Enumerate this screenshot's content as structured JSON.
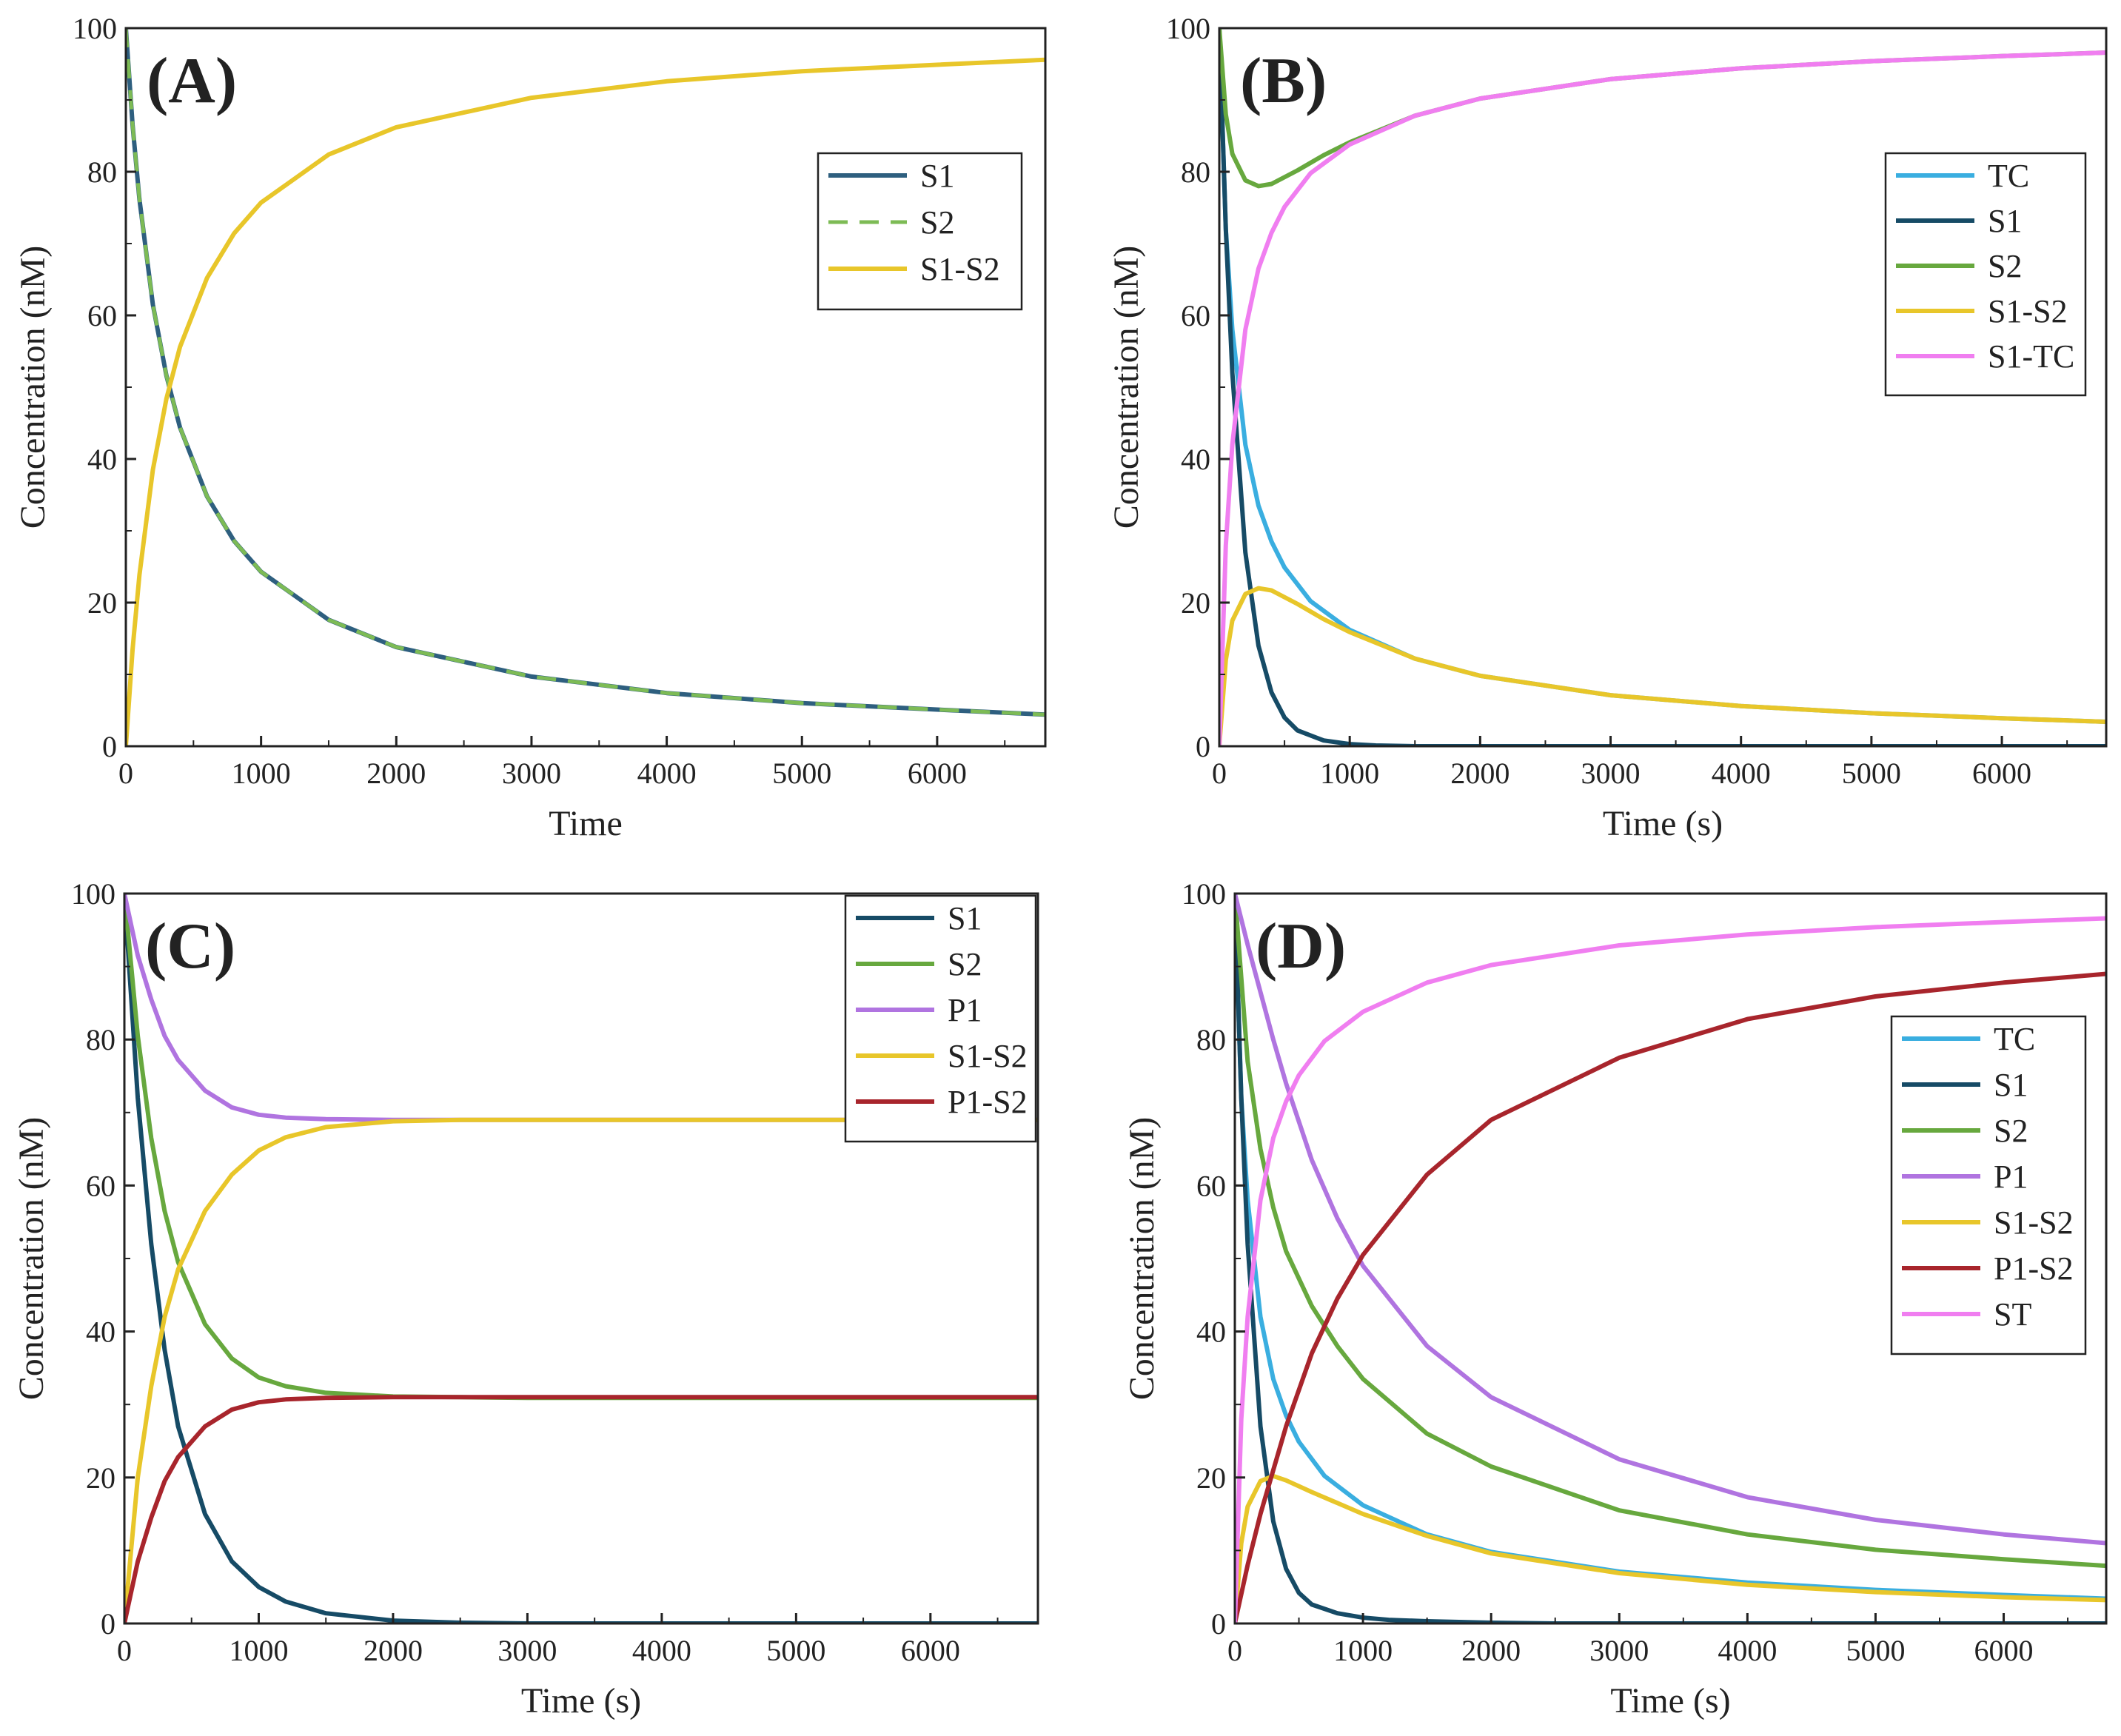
{
  "chart_data": [
    {
      "panel": "(A)",
      "type": "line",
      "xlabel": "Time",
      "ylabel": "Concentration (nM)",
      "xlim": [
        0,
        6800
      ],
      "ylim": [
        0,
        100
      ],
      "xticks": [
        0,
        1000,
        2000,
        3000,
        4000,
        5000,
        6000
      ],
      "yticks": [
        0,
        20,
        40,
        60,
        80,
        100
      ],
      "legend": "top-right",
      "series": [
        {
          "name": "S1",
          "color": "#2e5f7f",
          "dashed": false,
          "x": [
            0,
            50,
            100,
            200,
            300,
            400,
            600,
            800,
            1000,
            1500,
            2000,
            3000,
            4000,
            5000,
            6000,
            6800
          ],
          "y": [
            100,
            86.5,
            76.2,
            61.5,
            51.6,
            44.4,
            34.8,
            28.6,
            24.3,
            17.6,
            13.8,
            9.7,
            7.4,
            6.0,
            5.1,
            4.4
          ]
        },
        {
          "name": "S2",
          "color": "#7dbb55",
          "dashed": true,
          "x": [
            0,
            50,
            100,
            200,
            300,
            400,
            600,
            800,
            1000,
            1500,
            2000,
            3000,
            4000,
            5000,
            6000,
            6800
          ],
          "y": [
            100,
            86.5,
            76.2,
            61.5,
            51.6,
            44.4,
            34.8,
            28.6,
            24.3,
            17.6,
            13.8,
            9.7,
            7.4,
            6.0,
            5.1,
            4.4
          ]
        },
        {
          "name": "S1-S2",
          "color": "#e8c62a",
          "dashed": false,
          "x": [
            0,
            50,
            100,
            200,
            300,
            400,
            600,
            800,
            1000,
            1500,
            2000,
            3000,
            4000,
            5000,
            6000,
            6800
          ],
          "y": [
            0,
            13.5,
            23.8,
            38.5,
            48.4,
            55.6,
            65.2,
            71.4,
            75.7,
            82.4,
            86.2,
            90.3,
            92.6,
            94.0,
            94.9,
            95.6
          ]
        }
      ]
    },
    {
      "panel": "(B)",
      "type": "line",
      "xlabel": "Time (s)",
      "ylabel": "Concentration (nM)",
      "xlim": [
        0,
        6800
      ],
      "ylim": [
        0,
        100
      ],
      "xticks": [
        0,
        1000,
        2000,
        3000,
        4000,
        5000,
        6000
      ],
      "yticks": [
        0,
        20,
        40,
        60,
        80,
        100
      ],
      "legend": "top-right",
      "series": [
        {
          "name": "TC",
          "color": "#3aaee0",
          "dashed": false,
          "x": [
            0,
            50,
            100,
            200,
            300,
            400,
            500,
            700,
            1000,
            1500,
            2000,
            3000,
            4000,
            5000,
            6000,
            6800
          ],
          "y": [
            100,
            72,
            58,
            42,
            33.5,
            28.5,
            24.9,
            20.2,
            16.2,
            12.2,
            9.8,
            7.1,
            5.6,
            4.6,
            3.9,
            3.4
          ]
        },
        {
          "name": "S1",
          "color": "#164b66",
          "dashed": false,
          "x": [
            0,
            50,
            100,
            200,
            300,
            400,
            500,
            600,
            800,
            1000,
            1200,
            1500,
            2000,
            6800
          ],
          "y": [
            100,
            72,
            52,
            27,
            14,
            7.5,
            4,
            2.2,
            0.8,
            0.3,
            0.1,
            0,
            0,
            0
          ]
        },
        {
          "name": "S2",
          "color": "#67a83e",
          "dashed": false,
          "x": [
            0,
            50,
            100,
            200,
            300,
            400,
            600,
            800,
            1000,
            1500,
            2000,
            3000,
            4000,
            5000,
            6000,
            6800
          ],
          "y": [
            100,
            88,
            82.5,
            78.8,
            78,
            78.3,
            80.2,
            82.3,
            84.1,
            87.8,
            90.2,
            92.9,
            94.4,
            95.4,
            96.1,
            96.6
          ]
        },
        {
          "name": "S1-S2",
          "color": "#e8c62a",
          "dashed": false,
          "x": [
            0,
            50,
            100,
            200,
            300,
            400,
            600,
            800,
            1000,
            1500,
            2000,
            3000,
            4000,
            5000,
            6000,
            6800
          ],
          "y": [
            0,
            12,
            17.5,
            21.2,
            22,
            21.7,
            19.8,
            17.7,
            15.9,
            12.2,
            9.8,
            7.1,
            5.6,
            4.6,
            3.9,
            3.4
          ]
        },
        {
          "name": "S1-TC",
          "color": "#f07ef0",
          "dashed": false,
          "x": [
            0,
            50,
            100,
            200,
            300,
            400,
            500,
            700,
            1000,
            1500,
            2000,
            3000,
            4000,
            5000,
            6000,
            6800
          ],
          "y": [
            0,
            28,
            42,
            58,
            66.5,
            71.5,
            75.1,
            79.8,
            83.8,
            87.8,
            90.2,
            92.9,
            94.4,
            95.4,
            96.1,
            96.6
          ]
        }
      ]
    },
    {
      "panel": "(C)",
      "type": "line",
      "xlabel": "Time (s)",
      "ylabel": "Concentration (nM)",
      "xlim": [
        0,
        6800
      ],
      "ylim": [
        0,
        100
      ],
      "xticks": [
        0,
        1000,
        2000,
        3000,
        4000,
        5000,
        6000
      ],
      "yticks": [
        0,
        20,
        40,
        60,
        80,
        100
      ],
      "legend": "top-right",
      "series": [
        {
          "name": "S1",
          "color": "#164b66",
          "dashed": false,
          "x": [
            0,
            100,
            200,
            300,
            400,
            600,
            800,
            1000,
            1200,
            1500,
            2000,
            2500,
            3000,
            6800
          ],
          "y": [
            100,
            72,
            52,
            37.5,
            27,
            15,
            8.5,
            5,
            3,
            1.4,
            0.4,
            0.1,
            0,
            0
          ]
        },
        {
          "name": "S2",
          "color": "#67a83e",
          "dashed": false,
          "x": [
            0,
            100,
            200,
            300,
            400,
            600,
            800,
            1000,
            1200,
            1500,
            2000,
            2500,
            3000,
            6800
          ],
          "y": [
            100,
            80.5,
            66.5,
            56.5,
            49.5,
            41,
            36.3,
            33.7,
            32.5,
            31.6,
            31.1,
            31,
            30.9,
            30.9
          ]
        },
        {
          "name": "P1",
          "color": "#b074e0",
          "dashed": false,
          "x": [
            0,
            100,
            200,
            300,
            400,
            600,
            800,
            1000,
            1200,
            1500,
            2000,
            2500,
            3000,
            6800
          ],
          "y": [
            100,
            91.5,
            85.5,
            80.5,
            77.2,
            73,
            70.7,
            69.7,
            69.3,
            69.1,
            69,
            69,
            69,
            69
          ]
        },
        {
          "name": "S1-S2",
          "color": "#e8c62a",
          "dashed": false,
          "x": [
            0,
            100,
            200,
            300,
            400,
            600,
            800,
            1000,
            1200,
            1500,
            2000,
            2500,
            3000,
            6800
          ],
          "y": [
            0,
            20,
            32.5,
            42,
            48.5,
            56.5,
            61.5,
            64.8,
            66.6,
            68,
            68.8,
            69,
            69,
            69
          ]
        },
        {
          "name": "P1-S2",
          "color": "#a8252c",
          "dashed": false,
          "x": [
            0,
            100,
            200,
            300,
            400,
            600,
            800,
            1000,
            1200,
            1500,
            2000,
            2500,
            3000,
            6800
          ],
          "y": [
            0,
            8.5,
            14.5,
            19.5,
            22.8,
            27,
            29.3,
            30.3,
            30.7,
            30.9,
            31,
            31,
            31,
            31
          ]
        }
      ]
    },
    {
      "panel": "(D)",
      "type": "line",
      "xlabel": "Time (s)",
      "ylabel": "Concentration (nM)",
      "xlim": [
        0,
        6800
      ],
      "ylim": [
        0,
        100
      ],
      "xticks": [
        0,
        1000,
        2000,
        3000,
        4000,
        5000,
        6000
      ],
      "yticks": [
        0,
        20,
        40,
        60,
        80,
        100
      ],
      "legend": "top-right",
      "series": [
        {
          "name": "TC",
          "color": "#3aaee0",
          "dashed": false,
          "x": [
            0,
            50,
            100,
            200,
            300,
            400,
            500,
            700,
            1000,
            1500,
            2000,
            3000,
            4000,
            5000,
            6000,
            6800
          ],
          "y": [
            100,
            72,
            58,
            42,
            33.5,
            28.5,
            24.9,
            20.2,
            16.2,
            12.2,
            9.8,
            7.1,
            5.6,
            4.6,
            3.9,
            3.4
          ]
        },
        {
          "name": "S1",
          "color": "#164b66",
          "dashed": false,
          "x": [
            0,
            50,
            100,
            200,
            300,
            400,
            500,
            600,
            800,
            1000,
            1200,
            1500,
            2000,
            2500,
            6800
          ],
          "y": [
            100,
            72,
            52,
            27,
            14,
            7.5,
            4.2,
            2.6,
            1.4,
            0.8,
            0.5,
            0.3,
            0.1,
            0,
            0
          ]
        },
        {
          "name": "S2",
          "color": "#67a83e",
          "dashed": false,
          "x": [
            0,
            100,
            200,
            300,
            400,
            600,
            800,
            1000,
            1500,
            2000,
            3000,
            4000,
            5000,
            6000,
            6800
          ],
          "y": [
            100,
            77,
            65,
            57,
            51,
            43.5,
            38,
            33.5,
            26,
            21.5,
            15.5,
            12.2,
            10.1,
            8.8,
            7.9
          ]
        },
        {
          "name": "P1",
          "color": "#b074e0",
          "dashed": false,
          "x": [
            0,
            100,
            200,
            300,
            400,
            600,
            800,
            1000,
            1500,
            2000,
            3000,
            4000,
            5000,
            6000,
            6800
          ],
          "y": [
            100,
            93,
            86.5,
            80,
            74,
            63.5,
            55.5,
            49,
            38,
            31,
            22.5,
            17.3,
            14.2,
            12.2,
            11
          ]
        },
        {
          "name": "S1-S2",
          "color": "#e8c62a",
          "dashed": false,
          "x": [
            0,
            50,
            100,
            200,
            300,
            400,
            600,
            800,
            1000,
            1500,
            2000,
            3000,
            4000,
            5000,
            6000,
            6800
          ],
          "y": [
            0,
            11,
            16,
            19.5,
            20.2,
            19.6,
            18,
            16.5,
            15,
            12,
            9.6,
            6.9,
            5.3,
            4.3,
            3.6,
            3.2
          ]
        },
        {
          "name": "P1-S2",
          "color": "#a8252c",
          "dashed": false,
          "x": [
            0,
            100,
            200,
            300,
            400,
            600,
            800,
            1000,
            1500,
            2000,
            3000,
            4000,
            5000,
            6000,
            6800
          ],
          "y": [
            0,
            8,
            15,
            21,
            27,
            37,
            44.5,
            50.5,
            61.5,
            69,
            77.5,
            82.8,
            85.9,
            87.8,
            89
          ]
        },
        {
          "name": "ST",
          "color": "#f07ef0",
          "dashed": false,
          "x": [
            0,
            50,
            100,
            200,
            300,
            400,
            500,
            700,
            1000,
            1500,
            2000,
            3000,
            4000,
            5000,
            6000,
            6800
          ],
          "y": [
            0,
            28,
            42,
            58,
            66.5,
            71.5,
            75.1,
            79.8,
            83.8,
            87.8,
            90.2,
            92.9,
            94.4,
            95.4,
            96.1,
            96.6
          ]
        }
      ]
    }
  ]
}
